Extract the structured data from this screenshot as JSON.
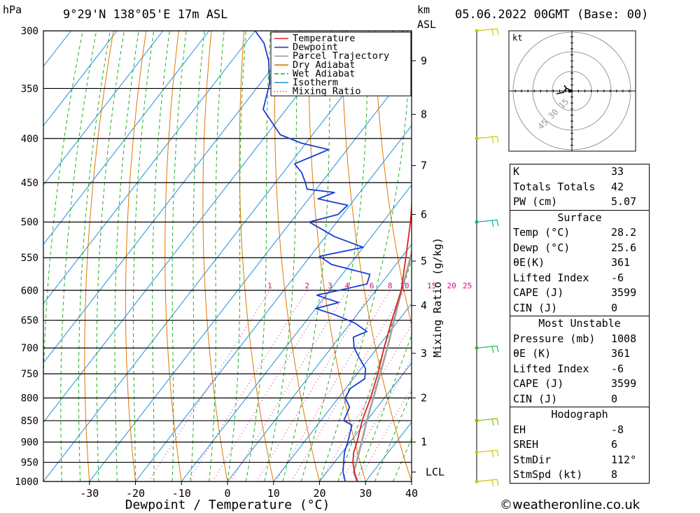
{
  "header": {
    "units_left": "hPa",
    "location": "9°29'N 138°05'E 17m ASL",
    "units_km": "km",
    "units_asl": "ASL",
    "datetime": "05.06.2022 00GMT (Base: 00)"
  },
  "chart_data": {
    "type": "line",
    "xlabel": "Dewpoint / Temperature (°C)",
    "ylabel": "hPa",
    "right_label": "Mixing Ratio (g/kg)",
    "xlim": [
      -40,
      40
    ],
    "ylim": [
      1000,
      300
    ],
    "x_ticks": [
      -30,
      -20,
      -10,
      0,
      10,
      20,
      30,
      40
    ],
    "pressure_levels": [
      300,
      350,
      400,
      450,
      500,
      550,
      600,
      650,
      700,
      750,
      800,
      850,
      900,
      950,
      1000
    ],
    "km_ticks": [
      {
        "km": "1",
        "p": 900
      },
      {
        "km": "2",
        "p": 800
      },
      {
        "km": "3",
        "p": 710
      },
      {
        "km": "4",
        "p": 625
      },
      {
        "km": "5",
        "p": 555
      },
      {
        "km": "6",
        "p": 490
      },
      {
        "km": "7",
        "p": 430
      },
      {
        "km": "8",
        "p": 375
      },
      {
        "km": "9",
        "p": 325
      }
    ],
    "lcl": {
      "label": "LCL",
      "p": 975
    },
    "mixing_ratio_labels": [
      "1",
      "2",
      "3",
      "4",
      "6",
      "8",
      "10",
      "15",
      "20",
      "25"
    ],
    "mixing_ratio_values": [
      1,
      2,
      3,
      4,
      6,
      8,
      10,
      15,
      20,
      25
    ],
    "legend": [
      "Temperature",
      "Dewpoint",
      "Parcel Trajectory",
      "Dry Adiabat",
      "Wet Adiabat",
      "Isotherm",
      "Mixing Ratio"
    ],
    "colors": {
      "temperature": "#e02020",
      "dewpoint": "#1a3cd8",
      "parcel": "#a0a0a0",
      "dry_adiabat": "#e07800",
      "wet_adiabat": "#20b020",
      "isotherm": "#1e90d8",
      "mixing_ratio": "#d01080"
    },
    "series": [
      {
        "name": "Temperature",
        "points": [
          [
            1000,
            28.2
          ],
          [
            975,
            26.0
          ],
          [
            950,
            24.0
          ],
          [
            925,
            22.5
          ],
          [
            900,
            21.5
          ],
          [
            850,
            19.0
          ],
          [
            800,
            17.0
          ],
          [
            750,
            14.5
          ],
          [
            700,
            11.5
          ],
          [
            650,
            8.5
          ],
          [
            600,
            5.5
          ],
          [
            550,
            1.0
          ],
          [
            500,
            -4.0
          ],
          [
            450,
            -10.0
          ],
          [
            400,
            -17.0
          ],
          [
            360,
            -23.0
          ],
          [
            330,
            -31.0
          ],
          [
            300,
            -38.0
          ]
        ]
      },
      {
        "name": "Dewpoint",
        "points": [
          [
            1000,
            25.6
          ],
          [
            975,
            23.5
          ],
          [
            950,
            22.0
          ],
          [
            925,
            20.5
          ],
          [
            900,
            19.5
          ],
          [
            860,
            17.5
          ],
          [
            850,
            15.0
          ],
          [
            820,
            14.0
          ],
          [
            800,
            11.5
          ],
          [
            780,
            11.0
          ],
          [
            760,
            12.5
          ],
          [
            740,
            11.0
          ],
          [
            720,
            8.0
          ],
          [
            700,
            5.0
          ],
          [
            680,
            3.0
          ],
          [
            670,
            5.0
          ],
          [
            655,
            1.0
          ],
          [
            640,
            -5.0
          ],
          [
            630,
            -10.0
          ],
          [
            620,
            -6.0
          ],
          [
            608,
            -12.0
          ],
          [
            598,
            -7.0
          ],
          [
            590,
            -3.0
          ],
          [
            575,
            -4.0
          ],
          [
            560,
            -14.0
          ],
          [
            548,
            -18.0
          ],
          [
            535,
            -10.0
          ],
          [
            520,
            -18.0
          ],
          [
            500,
            -26.0
          ],
          [
            490,
            -21.0
          ],
          [
            478,
            -20.5
          ],
          [
            470,
            -28.0
          ],
          [
            462,
            -25.5
          ],
          [
            458,
            -32.0
          ],
          [
            450,
            -33.5
          ],
          [
            438,
            -36.0
          ],
          [
            428,
            -39.0
          ],
          [
            420,
            -36.5
          ],
          [
            412,
            -34.0
          ],
          [
            405,
            -41.0
          ],
          [
            396,
            -47.0
          ],
          [
            370,
            -55.0
          ],
          [
            345,
            -58.0
          ],
          [
            325,
            -62.0
          ],
          [
            310,
            -66.0
          ],
          [
            300,
            -70.0
          ]
        ]
      },
      {
        "name": "Parcel Trajectory",
        "points": [
          [
            1000,
            28.2
          ],
          [
            975,
            25.8
          ],
          [
            950,
            24.8
          ],
          [
            900,
            22.5
          ],
          [
            850,
            20.0
          ],
          [
            800,
            17.6
          ],
          [
            750,
            15.0
          ],
          [
            700,
            12.2
          ],
          [
            650,
            9.0
          ],
          [
            600,
            5.6
          ],
          [
            550,
            2.0
          ],
          [
            500,
            -2.0
          ],
          [
            450,
            -6.5
          ],
          [
            400,
            -12.0
          ],
          [
            350,
            -18.5
          ],
          [
            300,
            -27.0
          ]
        ]
      }
    ]
  },
  "wind_barbs": [
    {
      "p": 300,
      "color": "#c8c800"
    },
    {
      "p": 400,
      "color": "#c8c800"
    },
    {
      "p": 500,
      "color": "#00b0a0"
    },
    {
      "p": 700,
      "color": "#20c040"
    },
    {
      "p": 850,
      "color": "#80c000"
    },
    {
      "p": 925,
      "color": "#c8c800"
    },
    {
      "p": 1000,
      "color": "#c8c800"
    }
  ],
  "hodograph": {
    "unit_label": "kt",
    "ring_labels": [
      "15",
      "30",
      "45"
    ],
    "ring_values": [
      15,
      30,
      45
    ]
  },
  "indices": {
    "rows": [
      {
        "label": "K",
        "value": "33"
      },
      {
        "label": "Totals Totals",
        "value": "42"
      },
      {
        "label": "PW (cm)",
        "value": "5.07"
      }
    ]
  },
  "surface": {
    "title": "Surface",
    "rows": [
      {
        "label": "Temp (°C)",
        "value": "28.2"
      },
      {
        "label": "Dewp (°C)",
        "value": "25.6"
      },
      {
        "label": "θE(K)",
        "value": "361"
      },
      {
        "label": "Lifted Index",
        "value": "-6"
      },
      {
        "label": "CAPE (J)",
        "value": "3599"
      },
      {
        "label": "CIN (J)",
        "value": "0"
      }
    ]
  },
  "most_unstable": {
    "title": "Most Unstable",
    "rows": [
      {
        "label": "Pressure (mb)",
        "value": "1008"
      },
      {
        "label": "θE (K)",
        "value": "361"
      },
      {
        "label": "Lifted Index",
        "value": "-6"
      },
      {
        "label": "CAPE (J)",
        "value": "3599"
      },
      {
        "label": "CIN (J)",
        "value": "0"
      }
    ]
  },
  "hodograph_table": {
    "title": "Hodograph",
    "rows": [
      {
        "label": "EH",
        "value": "-8"
      },
      {
        "label": "SREH",
        "value": "6"
      },
      {
        "label": "StmDir",
        "value": "112°"
      },
      {
        "label": "StmSpd (kt)",
        "value": "8"
      }
    ]
  },
  "credit": "©weatheronline.co.uk"
}
